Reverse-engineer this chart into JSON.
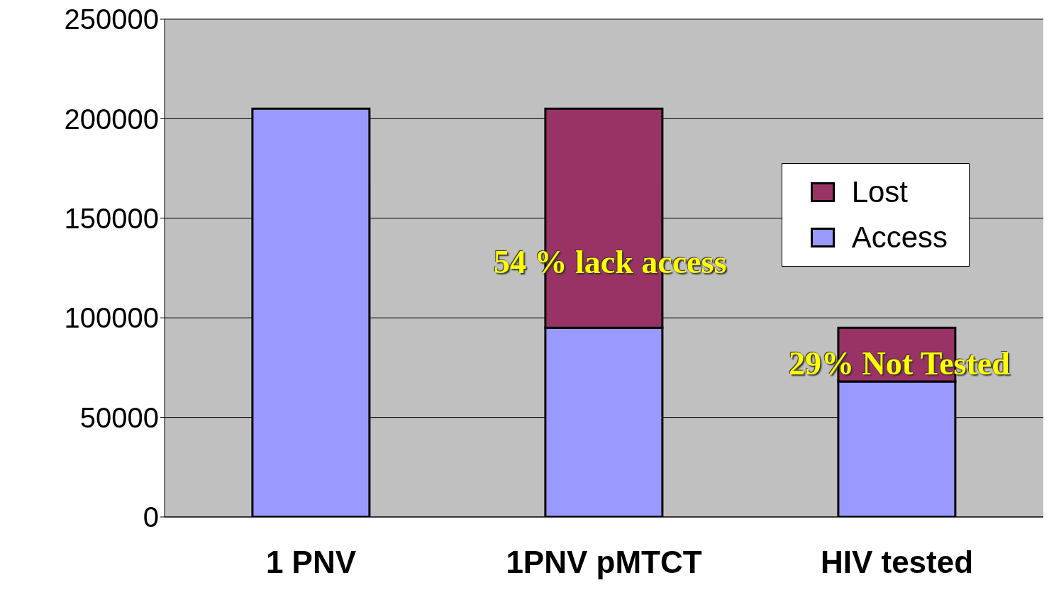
{
  "chart_data": {
    "type": "bar",
    "stacked": true,
    "categories": [
      "1 PNV",
      "1PNV pMTCT",
      "HIV tested"
    ],
    "series": [
      {
        "name": "Access",
        "color": "#9999ff",
        "values": [
          205000,
          95000,
          68000
        ]
      },
      {
        "name": "Lost",
        "color": "#993366",
        "values": [
          null,
          110000,
          27000
        ]
      }
    ],
    "ylim": [
      0,
      250000
    ],
    "yticks": [
      0,
      50000,
      100000,
      150000,
      200000,
      250000
    ],
    "grid": "y",
    "legend": "right",
    "annotations": [
      "54 % lack access",
      "29% Not Tested"
    ]
  }
}
